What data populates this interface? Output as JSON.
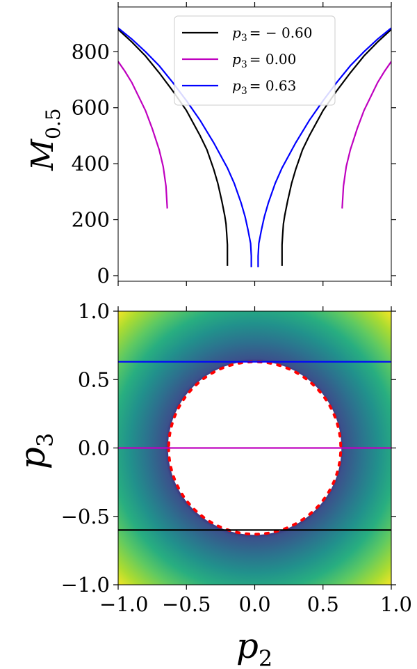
{
  "chart_data": [
    {
      "type": "line",
      "ylabel": "M",
      "ylabel_sub": "0.5",
      "xlim": [
        -1.0,
        1.0
      ],
      "ylim": [
        -20,
        960
      ],
      "yticks": [
        0,
        200,
        400,
        600,
        800
      ],
      "ytick_labels": [
        "0",
        "200",
        "400",
        "600",
        "800"
      ],
      "legend_position": "top-center",
      "series": [
        {
          "name": "p3 = -0.60",
          "label": "p",
          "label_sub": "3",
          "label_value": "= − 0.60",
          "color": "#000000",
          "segments": [
            {
              "x": [
                -1.0,
                -0.9,
                -0.8,
                -0.7,
                -0.6,
                -0.5,
                -0.4,
                -0.35,
                -0.3,
                -0.27,
                -0.24,
                -0.22,
                -0.21,
                -0.205,
                -0.2,
                -0.2
              ],
              "y": [
                880,
                835,
                785,
                725,
                660,
                590,
                500,
                450,
                380,
                330,
                265,
                215,
                185,
                150,
                110,
                35
              ]
            },
            {
              "x": [
                0.2,
                0.2,
                0.205,
                0.21,
                0.22,
                0.24,
                0.27,
                0.3,
                0.35,
                0.4,
                0.5,
                0.6,
                0.7,
                0.8,
                0.9,
                1.0
              ],
              "y": [
                35,
                110,
                150,
                185,
                215,
                265,
                330,
                380,
                450,
                500,
                590,
                660,
                725,
                785,
                835,
                880
              ]
            }
          ]
        },
        {
          "name": "p3 = 0.00",
          "label": "p",
          "label_sub": "3",
          "label_value": "= 0.00",
          "color": "#bf00bf",
          "segments": [
            {
              "x": [
                -1.0,
                -0.95,
                -0.9,
                -0.85,
                -0.8,
                -0.75,
                -0.7,
                -0.67,
                -0.65,
                -0.64
              ],
              "y": [
                765,
                730,
                690,
                640,
                590,
                525,
                450,
                390,
                320,
                240
              ]
            },
            {
              "x": [
                0.64,
                0.65,
                0.67,
                0.7,
                0.75,
                0.8,
                0.85,
                0.9,
                0.95,
                1.0
              ],
              "y": [
                240,
                320,
                390,
                450,
                525,
                590,
                640,
                690,
                730,
                765
              ]
            }
          ]
        },
        {
          "name": "p3 = 0.63",
          "label": "p",
          "label_sub": "3",
          "label_value": "= 0.63",
          "color": "#0000ff",
          "segments": [
            {
              "x": [
                -1.0,
                -0.9,
                -0.8,
                -0.7,
                -0.6,
                -0.5,
                -0.4,
                -0.3,
                -0.2,
                -0.15,
                -0.1,
                -0.07,
                -0.05,
                -0.03,
                -0.025,
                -0.025
              ],
              "y": [
                885,
                845,
                800,
                750,
                690,
                625,
                555,
                475,
                385,
                330,
                260,
                210,
                165,
                115,
                70,
                30
              ]
            },
            {
              "x": [
                0.025,
                0.025,
                0.03,
                0.05,
                0.07,
                0.1,
                0.15,
                0.2,
                0.3,
                0.4,
                0.5,
                0.6,
                0.7,
                0.8,
                0.9,
                1.0
              ],
              "y": [
                30,
                70,
                115,
                165,
                210,
                260,
                330,
                385,
                475,
                555,
                625,
                690,
                750,
                800,
                845,
                885
              ]
            }
          ]
        }
      ]
    },
    {
      "type": "heatmap",
      "xlabel": "p",
      "xlabel_sub": "2",
      "ylabel": "p",
      "ylabel_sub": "3",
      "xlim": [
        -1.0,
        1.0
      ],
      "ylim": [
        -1.0,
        1.0
      ],
      "xticks": [
        -1.0,
        -0.5,
        0.0,
        0.5,
        1.0
      ],
      "xtick_labels": [
        "−1.0",
        "−0.5",
        "0.0",
        "0.5",
        "1.0"
      ],
      "yticks": [
        -1.0,
        -0.5,
        0.0,
        0.5,
        1.0
      ],
      "ytick_labels": [
        "−1.0",
        "−0.5",
        "0.0",
        "0.5",
        "1.0"
      ],
      "colormap": "viridis",
      "empty_region": {
        "shape": "circle",
        "center": [
          0.0,
          0.0
        ],
        "radius": 0.635
      },
      "boundary_line": {
        "style": "dotted",
        "color": "#ff0000",
        "shape": "circle",
        "center": [
          0.0,
          0.0
        ],
        "radius": 0.63
      },
      "horizontal_lines": [
        {
          "y": -0.6,
          "color": "#000000"
        },
        {
          "y": 0.0,
          "color": "#bf00bf"
        },
        {
          "y": 0.63,
          "color": "#0000ff"
        }
      ]
    }
  ]
}
